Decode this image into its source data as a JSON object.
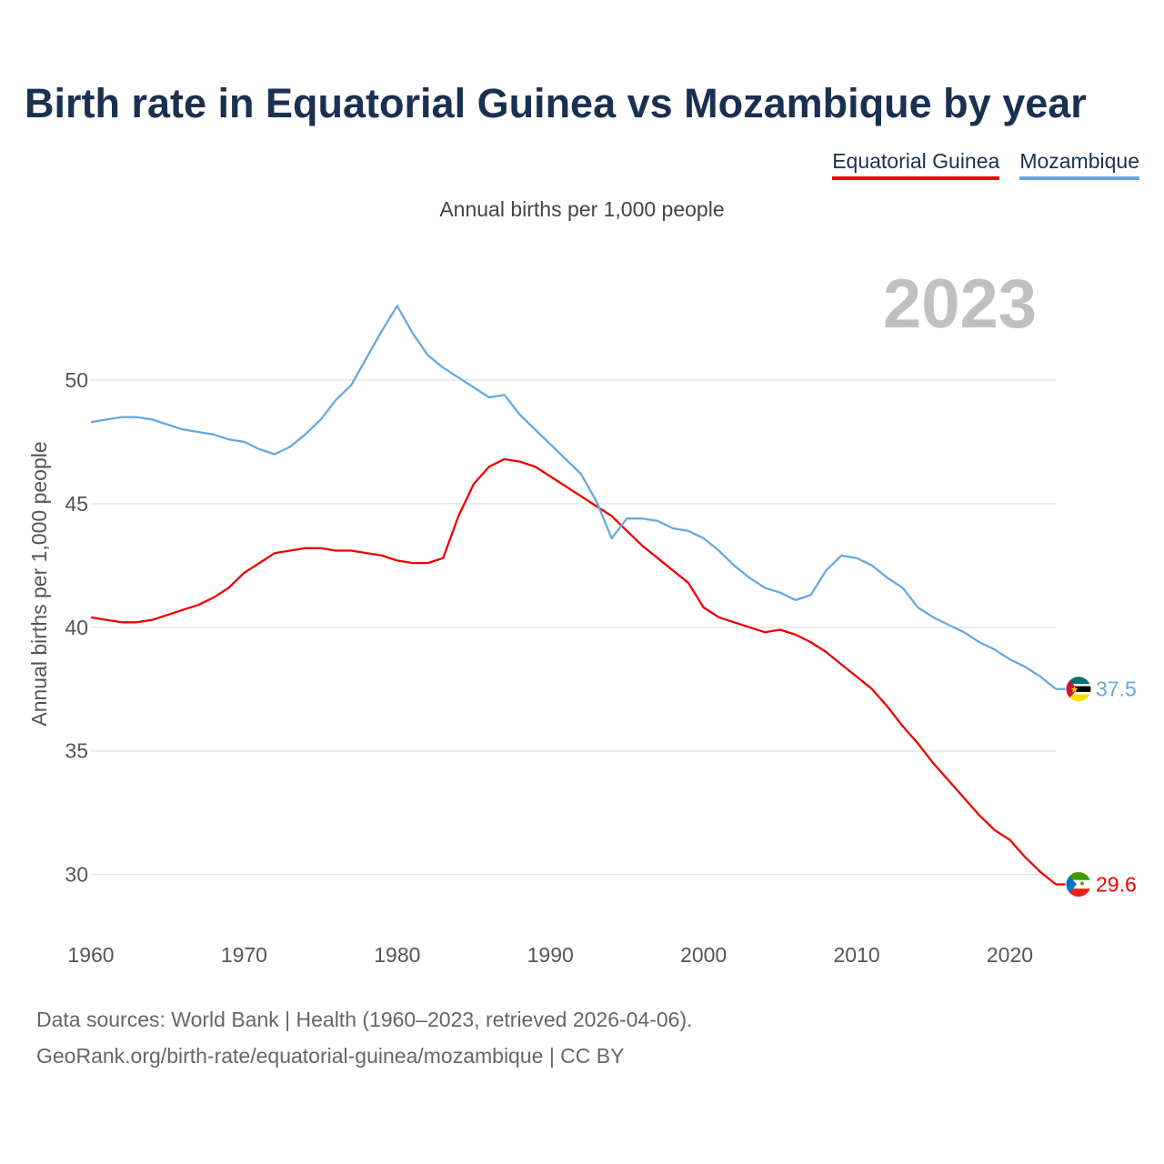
{
  "title": "Birth rate in Equatorial Guinea vs Mozambique by year",
  "subtitle": "Annual births per 1,000 people",
  "source_line1": "Data sources: World Bank | Health (1960–2023, retrieved 2026-04-06).",
  "source_line2": "GeoRank.org/birth-rate/equatorial-guinea/mozambique | CC BY",
  "chart_data": {
    "type": "line",
    "title": "Birth rate in Equatorial Guinea vs Mozambique by year",
    "ylabel": "Annual births per 1,000 people",
    "xlabel": "",
    "year_label": "2023",
    "xlim": [
      1960,
      2023
    ],
    "ylim": [
      28,
      55
    ],
    "x_ticks": [
      1960,
      1970,
      1980,
      1990,
      2000,
      2010,
      2020
    ],
    "y_ticks": [
      30,
      35,
      40,
      45,
      50
    ],
    "grid": true,
    "legend_position": "top-right",
    "x": [
      1960,
      1961,
      1962,
      1963,
      1964,
      1965,
      1966,
      1967,
      1968,
      1969,
      1970,
      1971,
      1972,
      1973,
      1974,
      1975,
      1976,
      1977,
      1978,
      1979,
      1980,
      1981,
      1982,
      1983,
      1984,
      1985,
      1986,
      1987,
      1988,
      1989,
      1990,
      1991,
      1992,
      1993,
      1994,
      1995,
      1996,
      1997,
      1998,
      1999,
      2000,
      2001,
      2002,
      2003,
      2004,
      2005,
      2006,
      2007,
      2008,
      2009,
      2010,
      2011,
      2012,
      2013,
      2014,
      2015,
      2016,
      2017,
      2018,
      2019,
      2020,
      2021,
      2022,
      2023
    ],
    "series": [
      {
        "name": "Equatorial Guinea",
        "color": "#ee0000",
        "end_label": "29.6",
        "values": [
          40.4,
          40.3,
          40.2,
          40.2,
          40.3,
          40.5,
          40.7,
          40.9,
          41.2,
          41.6,
          42.2,
          42.6,
          43.0,
          43.1,
          43.2,
          43.2,
          43.1,
          43.1,
          43.0,
          42.9,
          42.7,
          42.6,
          42.6,
          42.8,
          44.5,
          45.8,
          46.5,
          46.8,
          46.7,
          46.5,
          46.1,
          45.7,
          45.3,
          44.9,
          44.5,
          43.9,
          43.3,
          42.8,
          42.3,
          41.8,
          40.8,
          40.4,
          40.2,
          40.0,
          39.8,
          39.9,
          39.7,
          39.4,
          39.0,
          38.5,
          38.0,
          37.5,
          36.8,
          36.0,
          35.3,
          34.5,
          33.8,
          33.1,
          32.4,
          31.8,
          31.4,
          30.7,
          30.1,
          29.6
        ]
      },
      {
        "name": "Mozambique",
        "color": "#66a8e0",
        "end_label": "37.5",
        "values": [
          48.3,
          48.4,
          48.5,
          48.5,
          48.4,
          48.2,
          48.0,
          47.9,
          47.8,
          47.6,
          47.5,
          47.2,
          47.0,
          47.3,
          47.8,
          48.4,
          49.2,
          49.8,
          50.9,
          52.0,
          53.0,
          51.9,
          51.0,
          50.5,
          50.1,
          49.7,
          49.3,
          49.4,
          48.6,
          48.0,
          47.4,
          46.8,
          46.2,
          45.1,
          43.6,
          44.4,
          44.4,
          44.3,
          44.0,
          43.9,
          43.6,
          43.1,
          42.5,
          42.0,
          41.6,
          41.4,
          41.1,
          41.3,
          42.3,
          42.9,
          42.8,
          42.5,
          42.0,
          41.6,
          40.8,
          40.4,
          40.1,
          39.8,
          39.4,
          39.1,
          38.7,
          38.4,
          38.0,
          37.5
        ]
      }
    ]
  }
}
